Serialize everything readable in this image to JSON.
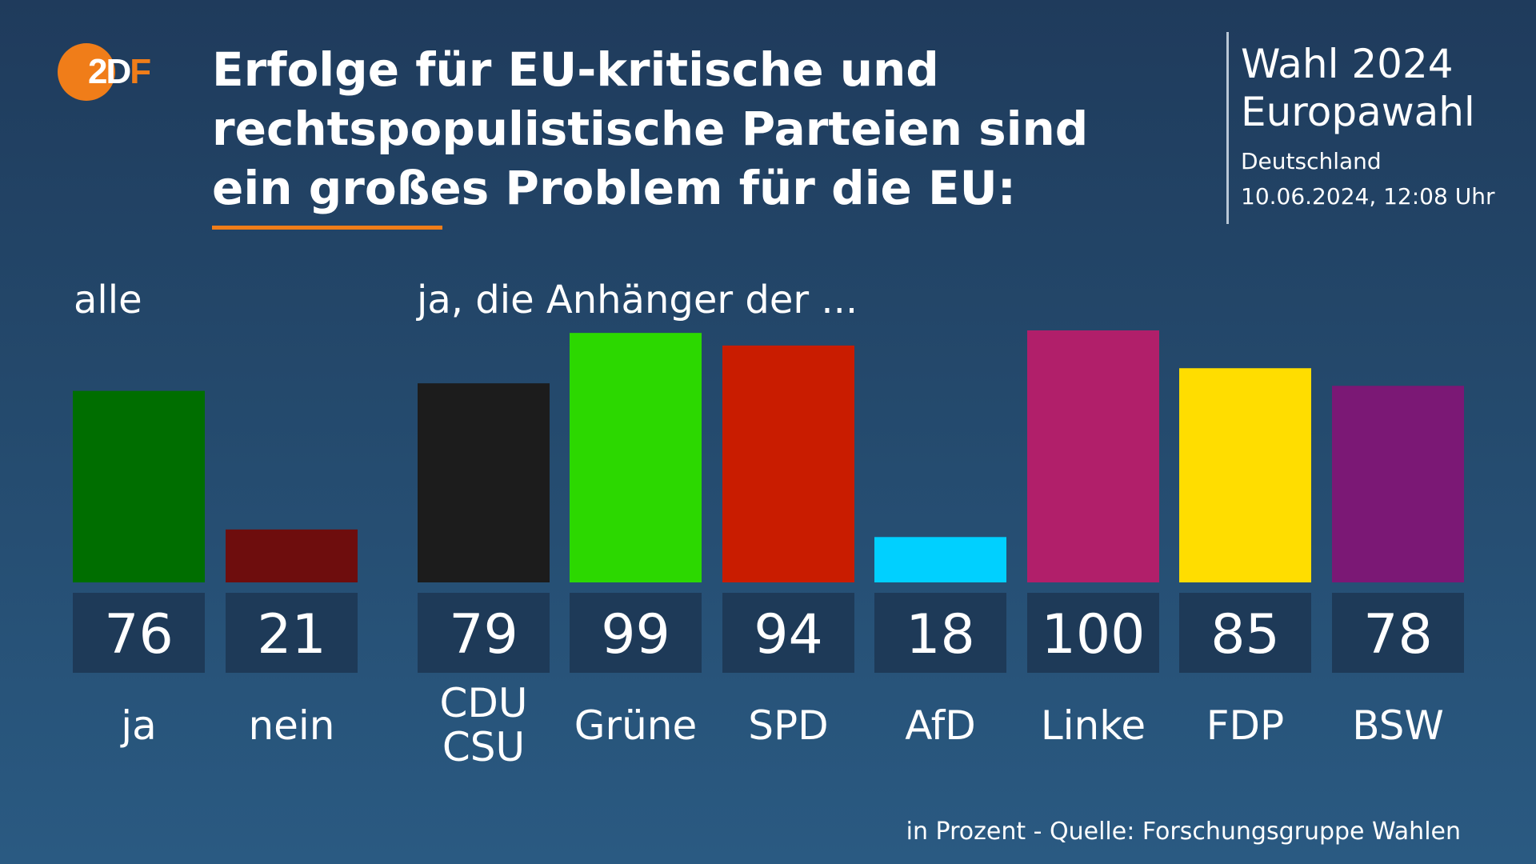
{
  "logo": {
    "text_main": "2D",
    "text_tail": "F"
  },
  "headline": "Erfolge für EU-kritische und rechtspopulistische Parteien sind ein großes Problem für die EU:",
  "info": {
    "line1": "Wahl 2024",
    "line2": "Europawahl",
    "line3": "Deutschland",
    "line4": "10.06.2024, 12:08 Uhr"
  },
  "group_labels": {
    "all": "alle",
    "parties": "ja, die Anhänger der ..."
  },
  "footer": "in Prozent - Quelle: Forschungsgruppe Wahlen",
  "colors": {
    "accent": "#f07d19",
    "label_box": "#1e3a58"
  },
  "chart_data": {
    "type": "bar",
    "title": "Erfolge für EU-kritische und rechtspopulistische Parteien sind ein großes Problem für die EU:",
    "unit": "in Prozent",
    "ylim": [
      0,
      100
    ],
    "groups": [
      {
        "label": "alle",
        "categories": [
          "ja",
          "nein"
        ]
      },
      {
        "label": "ja, die Anhänger der ...",
        "categories": [
          "CDU CSU",
          "Grüne",
          "SPD",
          "AfD",
          "Linke",
          "FDP",
          "BSW"
        ]
      }
    ],
    "categories": [
      "ja",
      "nein",
      "CDU CSU",
      "Grüne",
      "SPD",
      "AfD",
      "Linke",
      "FDP",
      "BSW"
    ],
    "category_lines": [
      [
        "ja"
      ],
      [
        "nein"
      ],
      [
        "CDU",
        "CSU"
      ],
      [
        "Grüne"
      ],
      [
        "SPD"
      ],
      [
        "AfD"
      ],
      [
        "Linke"
      ],
      [
        "FDP"
      ],
      [
        "BSW"
      ]
    ],
    "values": [
      76,
      21,
      79,
      99,
      94,
      18,
      100,
      85,
      78
    ],
    "bar_colors": [
      "#006e00",
      "#6e0d0d",
      "#1c1c1c",
      "#2cd800",
      "#c91c00",
      "#00d0ff",
      "#b11f6a",
      "#ffdd00",
      "#7b1875"
    ]
  }
}
